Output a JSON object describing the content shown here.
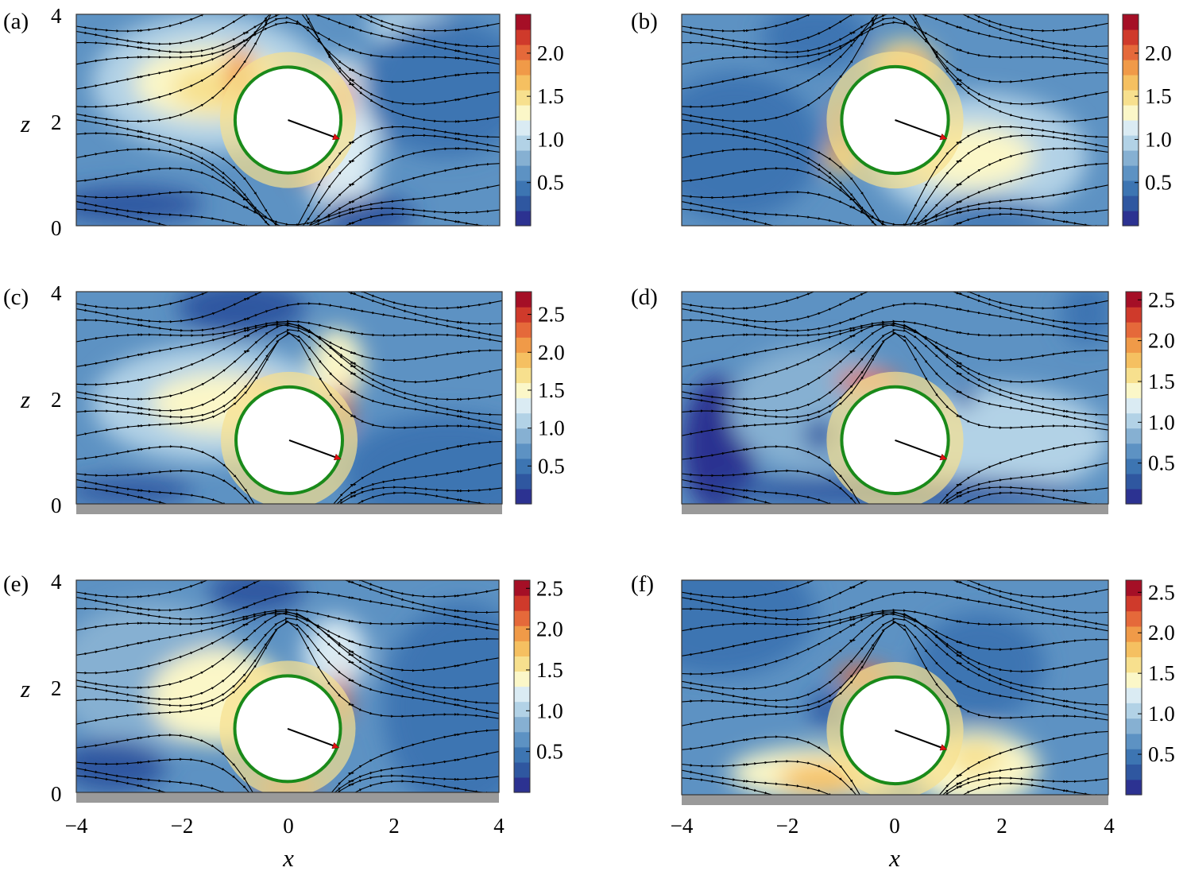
{
  "figure": {
    "x_axis_label": "x",
    "y_axis_label": "z",
    "x_ticks": [
      "−4",
      "−2",
      "0",
      "2",
      "4"
    ],
    "z_ticks": [
      "0",
      "2",
      "4"
    ]
  },
  "colors": {
    "colormap": [
      "#2c3291",
      "#2f57a0",
      "#3d75b2",
      "#5d92c3",
      "#86b0d2",
      "#b2d2e6",
      "#daebf3",
      "#fbf7c8",
      "#f7e08e",
      "#f5c061",
      "#f09a48",
      "#e5693a",
      "#cf3a2b",
      "#a50f26"
    ],
    "sphere_outline": "#1a8a1a",
    "sphere_fill": "#ffffff",
    "direction_arrow": "#e01010",
    "wall": "#9a9a9a",
    "streamline": "#000000"
  },
  "chart_data": [
    {
      "panel": "(a)",
      "type": "heatmap",
      "subtype": "filled contour with streamlines",
      "xlim": [
        -4,
        4
      ],
      "zlim": [
        0,
        4
      ],
      "wall": false,
      "sphere": {
        "x": 0,
        "z": 2,
        "r": 1
      },
      "arrow": {
        "from": [
          0,
          2
        ],
        "to": [
          0.95,
          1.65
        ]
      },
      "colorbar": {
        "min": 0,
        "max": 2.45,
        "ticks": [
          "0.5",
          "1.0",
          "1.5",
          "2.0"
        ],
        "levels": [
          0,
          0.175,
          0.35,
          0.525,
          0.7,
          0.875,
          1.05,
          1.225,
          1.4,
          1.575,
          1.75,
          1.925,
          2.1,
          2.275,
          2.45
        ]
      }
    },
    {
      "panel": "(b)",
      "type": "heatmap",
      "subtype": "filled contour with streamlines",
      "xlim": [
        -4,
        4
      ],
      "zlim": [
        0,
        4
      ],
      "wall": false,
      "sphere": {
        "x": 0,
        "z": 2,
        "r": 1
      },
      "arrow": {
        "from": [
          0,
          2
        ],
        "to": [
          0.95,
          1.65
        ]
      },
      "colorbar": {
        "min": 0,
        "max": 2.45,
        "ticks": [
          "0.5",
          "1.0",
          "1.5",
          "2.0"
        ],
        "levels": [
          0,
          0.175,
          0.35,
          0.525,
          0.7,
          0.875,
          1.05,
          1.225,
          1.4,
          1.575,
          1.75,
          1.925,
          2.1,
          2.275,
          2.45
        ]
      }
    },
    {
      "panel": "(c)",
      "type": "heatmap",
      "subtype": "filled contour with streamlines",
      "xlim": [
        -4,
        4
      ],
      "zlim": [
        0,
        4
      ],
      "wall": true,
      "sphere": {
        "x": 0,
        "z": 1.2,
        "r": 1
      },
      "arrow": {
        "from": [
          0,
          1.2
        ],
        "to": [
          0.95,
          0.85
        ]
      },
      "colorbar": {
        "min": 0,
        "max": 2.8,
        "ticks": [
          "0.5",
          "1.0",
          "1.5",
          "2.0",
          "2.5"
        ],
        "levels": [
          0,
          0.2,
          0.4,
          0.6,
          0.8,
          1.0,
          1.2,
          1.4,
          1.6,
          1.8,
          2.0,
          2.2,
          2.4,
          2.6,
          2.8
        ]
      }
    },
    {
      "panel": "(d)",
      "type": "heatmap",
      "subtype": "filled contour with streamlines",
      "xlim": [
        -4,
        4
      ],
      "zlim": [
        0,
        4
      ],
      "wall": true,
      "sphere": {
        "x": 0,
        "z": 1.2,
        "r": 1
      },
      "arrow": {
        "from": [
          0,
          1.2
        ],
        "to": [
          0.95,
          0.85
        ]
      },
      "colorbar": {
        "min": 0,
        "max": 2.6,
        "ticks": [
          "0.5",
          "1.0",
          "1.5",
          "2.0",
          "2.5"
        ],
        "levels": [
          0,
          0.186,
          0.371,
          0.557,
          0.743,
          0.929,
          1.114,
          1.3,
          1.486,
          1.671,
          1.857,
          2.043,
          2.229,
          2.414,
          2.6
        ]
      }
    },
    {
      "panel": "(e)",
      "type": "heatmap",
      "subtype": "filled contour with streamlines",
      "xlim": [
        -4,
        4
      ],
      "zlim": [
        0,
        4
      ],
      "wall": true,
      "sphere": {
        "x": 0,
        "z": 1.2,
        "r": 1
      },
      "arrow": {
        "from": [
          0,
          1.2
        ],
        "to": [
          0.95,
          0.85
        ]
      },
      "colorbar": {
        "min": 0,
        "max": 2.6,
        "ticks": [
          "0.5",
          "1.0",
          "1.5",
          "2.0",
          "2.5"
        ],
        "levels": [
          0,
          0.186,
          0.371,
          0.557,
          0.743,
          0.929,
          1.114,
          1.3,
          1.486,
          1.671,
          1.857,
          2.043,
          2.229,
          2.414,
          2.6
        ]
      }
    },
    {
      "panel": "(f)",
      "type": "heatmap",
      "subtype": "filled contour with streamlines",
      "xlim": [
        -4,
        4
      ],
      "zlim": [
        0,
        4
      ],
      "wall": true,
      "sphere": {
        "x": 0,
        "z": 1.2,
        "r": 1
      },
      "arrow": {
        "from": [
          0,
          1.2
        ],
        "to": [
          0.95,
          0.85
        ]
      },
      "colorbar": {
        "min": 0,
        "max": 2.65,
        "ticks": [
          "0.5",
          "1.0",
          "1.5",
          "2.0",
          "2.5"
        ],
        "levels": [
          0,
          0.189,
          0.379,
          0.568,
          0.757,
          0.946,
          1.136,
          1.325,
          1.514,
          1.704,
          1.893,
          2.082,
          2.271,
          2.461,
          2.65
        ]
      }
    }
  ]
}
